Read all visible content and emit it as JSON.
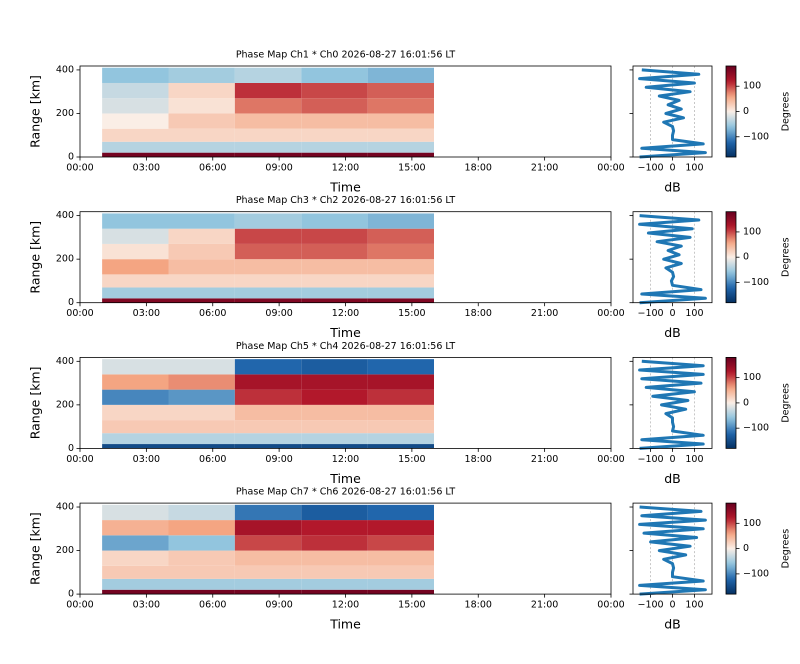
{
  "chart_data": [
    {
      "type": "heatmap",
      "title": "Phase Map Ch1 * Ch0 2026-08-27 16:01:56 LT",
      "xlabel": "Time",
      "ylabel": "Range [km]",
      "colormap": "RdBu_r",
      "xlim": [
        0,
        24
      ],
      "xticks": [
        {
          "value": 0,
          "label": "00:00"
        },
        {
          "value": 3,
          "label": "03:00"
        },
        {
          "value": 6,
          "label": "06:00"
        },
        {
          "value": 9,
          "label": "09:00"
        },
        {
          "value": 12,
          "label": "12:00"
        },
        {
          "value": 15,
          "label": "15:00"
        },
        {
          "value": 18,
          "label": "18:00"
        },
        {
          "value": 21,
          "label": "21:00"
        },
        {
          "value": 24,
          "label": "00:00"
        }
      ],
      "ylim": [
        0,
        418
      ],
      "yticks": [
        0,
        200,
        400
      ],
      "x_edges": [
        1,
        4,
        7,
        10,
        13,
        16
      ],
      "y_edges": [
        0,
        20,
        70,
        130,
        200,
        270,
        340,
        410
      ],
      "z": [
        [
          170,
          170,
          170,
          170,
          170
        ],
        [
          -40,
          -40,
          -40,
          -40,
          -40
        ],
        [
          20,
          20,
          20,
          20,
          20
        ],
        [
          0,
          30,
          40,
          40,
          40
        ],
        [
          -20,
          10,
          80,
          90,
          80
        ],
        [
          -30,
          20,
          110,
          100,
          90
        ],
        [
          -60,
          -50,
          -40,
          -60,
          -70
        ]
      ],
      "colorbar": {
        "label": "Degrees",
        "lim": [
          -180,
          180
        ],
        "ticks": [
          {
            "value": -100,
            "label": "−100"
          },
          0,
          100
        ]
      },
      "profile": {
        "xlabel": "dB",
        "color": "#1f77b4",
        "grid": true,
        "xlim": [
          -180,
          180
        ],
        "xticks": [
          {
            "value": -100,
            "label": "−100"
          },
          0,
          100
        ],
        "range": [
          0,
          20,
          40,
          60,
          80,
          100,
          120,
          140,
          160,
          180,
          200,
          220,
          240,
          260,
          280,
          300,
          320,
          340,
          360,
          380,
          400
        ],
        "values": [
          -150,
          150,
          -140,
          140,
          0,
          0,
          5,
          0,
          -40,
          50,
          -30,
          40,
          -20,
          30,
          -60,
          80,
          -120,
          100,
          -150,
          120,
          -140
        ]
      }
    },
    {
      "type": "heatmap",
      "title": "Phase Map Ch3 * Ch2 2026-08-27 16:01:56 LT",
      "xlabel": "Time",
      "ylabel": "Range [km]",
      "colormap": "RdBu_r",
      "xlim": [
        0,
        24
      ],
      "xticks": [
        {
          "value": 0,
          "label": "00:00"
        },
        {
          "value": 3,
          "label": "03:00"
        },
        {
          "value": 6,
          "label": "06:00"
        },
        {
          "value": 9,
          "label": "09:00"
        },
        {
          "value": 12,
          "label": "12:00"
        },
        {
          "value": 15,
          "label": "15:00"
        },
        {
          "value": 18,
          "label": "18:00"
        },
        {
          "value": 21,
          "label": "21:00"
        },
        {
          "value": 24,
          "label": "00:00"
        }
      ],
      "ylim": [
        0,
        418
      ],
      "yticks": [
        0,
        200,
        400
      ],
      "x_edges": [
        1,
        4,
        7,
        10,
        13,
        16
      ],
      "y_edges": [
        0,
        20,
        70,
        130,
        200,
        270,
        340,
        410
      ],
      "z": [
        [
          160,
          160,
          160,
          160,
          160
        ],
        [
          -50,
          -50,
          -50,
          -50,
          -50
        ],
        [
          20,
          20,
          20,
          20,
          20
        ],
        [
          60,
          40,
          40,
          40,
          40
        ],
        [
          10,
          30,
          90,
          90,
          80
        ],
        [
          -20,
          20,
          100,
          100,
          90
        ],
        [
          -60,
          -60,
          -50,
          -60,
          -70
        ]
      ],
      "colorbar": {
        "label": "Degrees",
        "lim": [
          -180,
          180
        ],
        "ticks": [
          {
            "value": -100,
            "label": "−100"
          },
          0,
          100
        ]
      },
      "profile": {
        "xlabel": "dB",
        "color": "#1f77b4",
        "grid": true,
        "xlim": [
          -180,
          180
        ],
        "xticks": [
          {
            "value": -100,
            "label": "−100"
          },
          0,
          100
        ],
        "range": [
          0,
          20,
          40,
          60,
          80,
          100,
          120,
          140,
          160,
          180,
          200,
          220,
          240,
          260,
          280,
          300,
          320,
          340,
          360,
          380,
          400
        ],
        "values": [
          -150,
          150,
          -140,
          130,
          0,
          -5,
          5,
          0,
          -30,
          40,
          -40,
          30,
          -20,
          40,
          -70,
          80,
          -110,
          90,
          -150,
          120,
          -150
        ]
      }
    },
    {
      "type": "heatmap",
      "title": "Phase Map Ch5 * Ch4 2026-08-27 16:01:56 LT",
      "xlabel": "Time",
      "ylabel": "Range [km]",
      "colormap": "RdBu_r",
      "xlim": [
        0,
        24
      ],
      "xticks": [
        {
          "value": 0,
          "label": "00:00"
        },
        {
          "value": 3,
          "label": "03:00"
        },
        {
          "value": 6,
          "label": "06:00"
        },
        {
          "value": 9,
          "label": "09:00"
        },
        {
          "value": 12,
          "label": "12:00"
        },
        {
          "value": 15,
          "label": "15:00"
        },
        {
          "value": 18,
          "label": "18:00"
        },
        {
          "value": 21,
          "label": "21:00"
        },
        {
          "value": 24,
          "label": "00:00"
        }
      ],
      "ylim": [
        0,
        418
      ],
      "yticks": [
        0,
        200,
        400
      ],
      "x_edges": [
        1,
        4,
        7,
        10,
        13,
        16
      ],
      "y_edges": [
        0,
        20,
        70,
        130,
        200,
        270,
        340,
        410
      ],
      "z": [
        [
          -150,
          -150,
          -150,
          -150,
          -150
        ],
        [
          -40,
          -40,
          -40,
          -40,
          -40
        ],
        [
          30,
          30,
          30,
          30,
          30
        ],
        [
          20,
          20,
          40,
          40,
          40
        ],
        [
          -100,
          -90,
          110,
          120,
          110
        ],
        [
          60,
          70,
          130,
          130,
          130
        ],
        [
          -20,
          -20,
          -120,
          -130,
          -120
        ]
      ],
      "colorbar": {
        "label": "Degrees",
        "lim": [
          -180,
          180
        ],
        "ticks": [
          {
            "value": -100,
            "label": "−100"
          },
          0,
          100
        ]
      },
      "profile": {
        "xlabel": "dB",
        "color": "#1f77b4",
        "grid": true,
        "xlim": [
          -180,
          180
        ],
        "xticks": [
          {
            "value": -100,
            "label": "−100"
          },
          0,
          100
        ],
        "range": [
          0,
          20,
          40,
          60,
          80,
          100,
          120,
          140,
          160,
          180,
          200,
          220,
          240,
          260,
          280,
          300,
          320,
          340,
          360,
          380,
          400
        ],
        "values": [
          -150,
          140,
          -140,
          140,
          0,
          5,
          0,
          0,
          -30,
          60,
          -50,
          70,
          -90,
          100,
          -120,
          130,
          -140,
          140,
          -150,
          140,
          -140
        ]
      }
    },
    {
      "type": "heatmap",
      "title": "Phase Map Ch7 * Ch6 2026-08-27 16:01:56 LT",
      "xlabel": "Time",
      "ylabel": "Range [km]",
      "colormap": "RdBu_r",
      "xlim": [
        0,
        24
      ],
      "xticks": [
        {
          "value": 0,
          "label": "00:00"
        },
        {
          "value": 3,
          "label": "03:00"
        },
        {
          "value": 6,
          "label": "06:00"
        },
        {
          "value": 9,
          "label": "09:00"
        },
        {
          "value": 12,
          "label": "12:00"
        },
        {
          "value": 15,
          "label": "15:00"
        },
        {
          "value": 18,
          "label": "18:00"
        },
        {
          "value": 21,
          "label": "21:00"
        },
        {
          "value": 24,
          "label": "00:00"
        }
      ],
      "ylim": [
        0,
        418
      ],
      "yticks": [
        0,
        200,
        400
      ],
      "x_edges": [
        1,
        4,
        7,
        10,
        13,
        16
      ],
      "y_edges": [
        0,
        20,
        70,
        130,
        200,
        270,
        340,
        410
      ],
      "z": [
        [
          170,
          170,
          170,
          170,
          170
        ],
        [
          -50,
          -50,
          -50,
          -50,
          -50
        ],
        [
          30,
          30,
          30,
          30,
          30
        ],
        [
          20,
          30,
          40,
          40,
          40
        ],
        [
          -80,
          -60,
          100,
          110,
          100
        ],
        [
          50,
          60,
          130,
          120,
          120
        ],
        [
          -20,
          -30,
          -110,
          -130,
          -120
        ]
      ],
      "colorbar": {
        "label": "Degrees",
        "lim": [
          -180,
          180
        ],
        "ticks": [
          {
            "value": -100,
            "label": "−100"
          },
          0,
          100
        ]
      },
      "profile": {
        "xlabel": "dB",
        "color": "#1f77b4",
        "grid": true,
        "xlim": [
          -180,
          180
        ],
        "xticks": [
          {
            "value": -100,
            "label": "−100"
          },
          0,
          100
        ],
        "range": [
          0,
          20,
          40,
          60,
          80,
          100,
          120,
          140,
          160,
          180,
          200,
          220,
          240,
          260,
          280,
          300,
          320,
          340,
          360,
          380,
          400
        ],
        "values": [
          -150,
          150,
          -150,
          140,
          0,
          0,
          5,
          0,
          -40,
          60,
          -60,
          80,
          -100,
          110,
          -130,
          140,
          -150,
          150,
          -140,
          130,
          -150
        ]
      }
    }
  ]
}
